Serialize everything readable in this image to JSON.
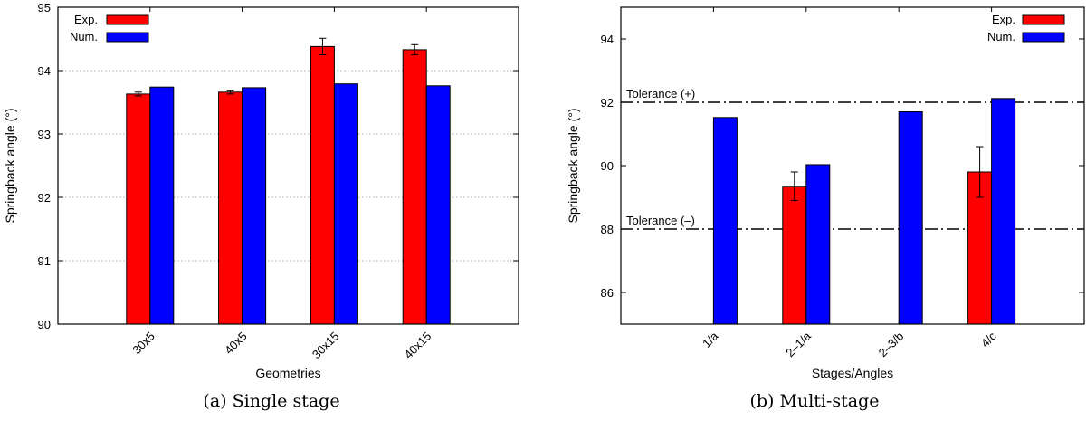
{
  "colors": {
    "exp": "#ff0000",
    "num": "#0000ff",
    "grid": "#b0b0b0",
    "axis": "#000000"
  },
  "chart_data": [
    {
      "type": "bar",
      "caption": "(a) Single stage",
      "xlabel": "Geometries",
      "ylabel": "Springback angle (°)",
      "ylim": [
        90,
        95
      ],
      "yticks": [
        90,
        91,
        92,
        93,
        94,
        95
      ],
      "grid": "horizontal dotted",
      "legend_position": "top-left",
      "categories": [
        "30x5",
        "40x5",
        "30x15",
        "40x15"
      ],
      "series": [
        {
          "name": "Exp.",
          "color": "#ff0000",
          "values": [
            93.63,
            93.66,
            94.38,
            94.33
          ],
          "errors": [
            0.03,
            0.03,
            0.13,
            0.08
          ]
        },
        {
          "name": "Num.",
          "color": "#0000ff",
          "values": [
            93.74,
            93.73,
            93.79,
            93.76
          ],
          "errors": null
        }
      ]
    },
    {
      "type": "bar",
      "caption": "(b) Multi-stage",
      "xlabel": "Stages/Angles",
      "ylabel": "Springback angle (°)",
      "ylim": [
        85,
        95
      ],
      "yticks": [
        86,
        88,
        90,
        92,
        94
      ],
      "grid": "off",
      "legend_position": "top-right",
      "categories": [
        "1/a",
        "2–1/a",
        "2–3/b",
        "4/c"
      ],
      "series": [
        {
          "name": "Exp.",
          "color": "#ff0000",
          "values": [
            null,
            89.35,
            null,
            89.8
          ],
          "errors": [
            null,
            0.45,
            null,
            0.8
          ]
        },
        {
          "name": "Num.",
          "color": "#0000ff",
          "values": [
            91.52,
            90.03,
            91.7,
            92.12
          ],
          "errors": null
        }
      ],
      "reference_lines": [
        {
          "label": "Tolerance (+)",
          "value": 92
        },
        {
          "label": "Tolerance (–)",
          "value": 88
        }
      ]
    }
  ]
}
